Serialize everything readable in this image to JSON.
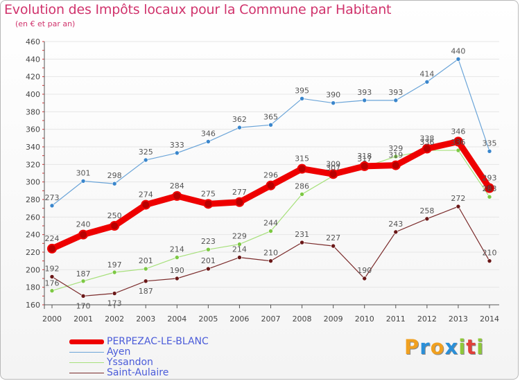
{
  "header": {
    "title": "Evolution des Impôts locaux pour la Commune par Habitant",
    "subtitle": "(en € et par an)"
  },
  "logo": {
    "letters": [
      "P",
      "r",
      "o",
      "x",
      "i",
      "t",
      "i"
    ],
    "colors": [
      "#f0a020",
      "#2a8fd8",
      "#f0a020",
      "#2a8fd8",
      "#8fc83a",
      "#e0403a",
      "#8fc83a"
    ]
  },
  "chart_data": {
    "type": "line",
    "title": "Evolution des Impôts locaux pour la Commune par Habitant",
    "ylabel": "(en € et par an)",
    "xlabel": "",
    "x": [
      "2000",
      "2001",
      "2002",
      "2003",
      "2004",
      "2005",
      "2006",
      "2007",
      "2008",
      "2009",
      "2010",
      "2011",
      "2012",
      "2013",
      "2014"
    ],
    "ylim": [
      160,
      460
    ],
    "yticks": [
      160,
      180,
      200,
      220,
      240,
      260,
      280,
      300,
      320,
      340,
      360,
      380,
      400,
      420,
      440,
      460
    ],
    "grid": true,
    "legend_position": "bottom-left",
    "series": [
      {
        "name": "PERPEZAC-LE-BLANC",
        "values": [
          224,
          240,
          250,
          274,
          284,
          275,
          277,
          296,
          315,
          309,
          318,
          319,
          338,
          346,
          293
        ],
        "labels": [
          "224",
          "240",
          "250",
          "274",
          "284",
          "275",
          "277",
          "296",
          "315",
          "309",
          "318",
          "319",
          "338",
          "346",
          "293"
        ],
        "color": "#ee0000",
        "marker": "#b80000",
        "emphasis": true
      },
      {
        "name": "Ayen",
        "values": [
          273,
          301,
          298,
          325,
          333,
          346,
          362,
          365,
          395,
          390,
          393,
          393,
          414,
          440,
          335
        ],
        "labels": [
          "273",
          "301",
          "298",
          "325",
          "333",
          "346",
          "362",
          "365",
          "395",
          "390",
          "393",
          "393",
          "414",
          "440",
          "335"
        ],
        "color": "#6aa4d8",
        "marker": "#3a86cc",
        "emphasis": false
      },
      {
        "name": "Yssandon",
        "values": [
          176,
          187,
          197,
          201,
          214,
          223,
          229,
          244,
          286,
          307,
          317,
          329,
          336,
          336,
          283
        ],
        "labels": [
          "176",
          "187",
          "197",
          "201",
          "214",
          "223",
          "229",
          "244",
          "286",
          "307",
          "317",
          "329",
          "336",
          "336",
          "283"
        ],
        "color": "#a6e07a",
        "marker": "#7cc843",
        "emphasis": false
      },
      {
        "name": "Saint-Aulaire",
        "values": [
          192,
          170,
          173,
          187,
          190,
          201,
          214,
          210,
          231,
          227,
          190,
          243,
          258,
          272,
          210
        ],
        "labels": [
          "192",
          "170",
          "173",
          "187",
          "190",
          "201",
          "214",
          "210",
          "231",
          "227",
          "190",
          "243",
          "258",
          "272",
          "210"
        ],
        "color": "#7a2a2a",
        "marker": "#6a1818",
        "emphasis": false
      }
    ]
  }
}
